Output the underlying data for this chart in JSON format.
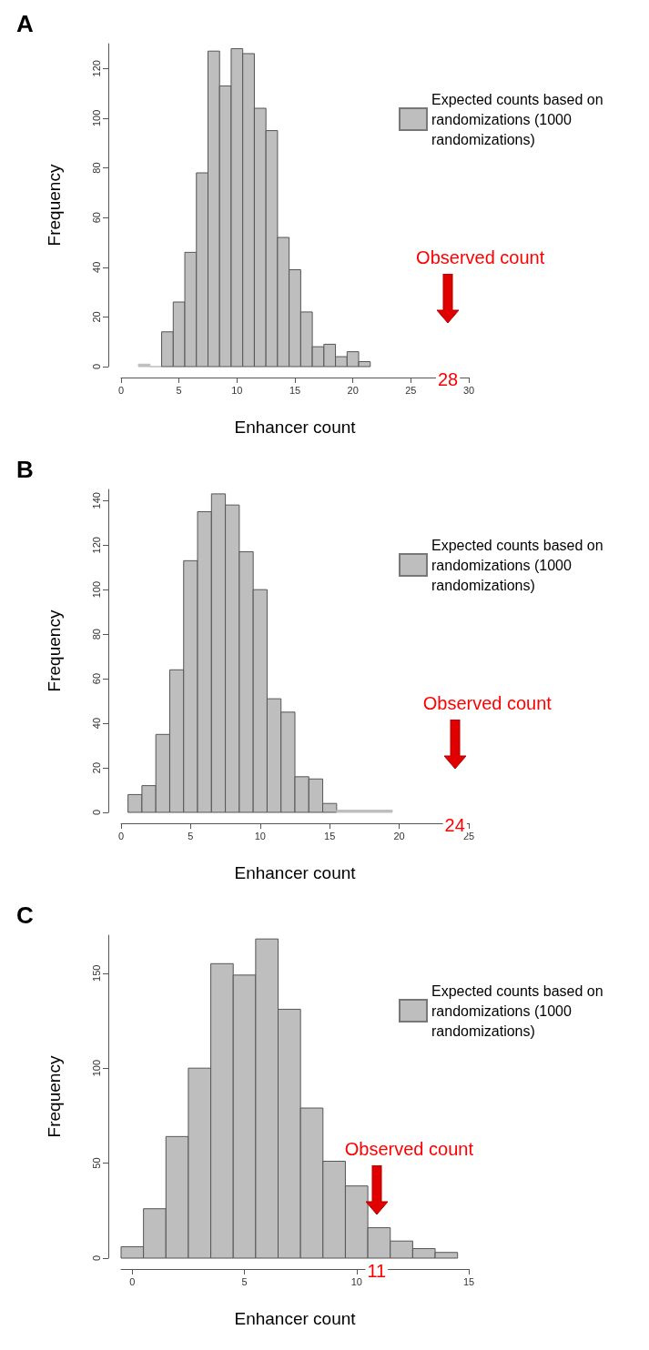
{
  "chart_data": [
    {
      "type": "histogram",
      "title": "A",
      "xlabel": "Enhancer count",
      "ylabel": "Frequency",
      "bins": [
        1.5,
        2.5,
        3.5,
        4.5,
        5.5,
        6.5,
        7.5,
        8.5,
        9.5,
        10.5,
        11.5,
        12.5,
        13.5,
        14.5,
        15.5,
        16.5,
        17.5,
        18.5,
        19.5,
        20.5,
        21.5
      ],
      "series": [
        {
          "name": "Expected counts based on randomizations (1000 randomizations)",
          "color": "#bebebe",
          "values": [
            1,
            0,
            14,
            26,
            46,
            78,
            127,
            113,
            128,
            126,
            104,
            95,
            52,
            39,
            22,
            8,
            9,
            4,
            6,
            2
          ]
        }
      ],
      "xlim": [
        0,
        30
      ],
      "xticks": [
        0,
        5,
        10,
        15,
        20,
        25,
        30
      ],
      "ylim": [
        0,
        130
      ],
      "yticks": [
        0,
        20,
        40,
        60,
        80,
        100,
        120
      ],
      "legend": "right",
      "grid": false,
      "annotations": [
        "Observed count",
        "28"
      ]
    },
    {
      "type": "histogram",
      "title": "B",
      "xlabel": "Enhancer count",
      "ylabel": "Frequency",
      "bins": [
        0.5,
        1.5,
        2.5,
        3.5,
        4.5,
        5.5,
        6.5,
        7.5,
        8.5,
        9.5,
        10.5,
        11.5,
        12.5,
        13.5,
        14.5,
        15.5,
        16.5,
        17.5,
        18.5,
        19.5
      ],
      "series": [
        {
          "name": "Expected counts based on randomizations (1000 randomizations)",
          "color": "#bebebe",
          "values": [
            8,
            12,
            35,
            64,
            113,
            135,
            143,
            138,
            117,
            100,
            51,
            45,
            16,
            15,
            4,
            1,
            1,
            1,
            1
          ]
        }
      ],
      "xlim": [
        0,
        25
      ],
      "xticks": [
        0,
        5,
        10,
        15,
        20,
        25
      ],
      "ylim": [
        0,
        145
      ],
      "yticks": [
        0,
        20,
        40,
        60,
        80,
        100,
        120,
        140
      ],
      "legend": "right",
      "grid": false,
      "annotations": [
        "Observed count",
        "24"
      ]
    },
    {
      "type": "histogram",
      "title": "C",
      "xlabel": "Enhancer count",
      "ylabel": "Frequency",
      "bins": [
        -0.5,
        0.5,
        1.5,
        2.5,
        3.5,
        4.5,
        5.5,
        6.5,
        7.5,
        8.5,
        9.5,
        10.5,
        11.5,
        12.5,
        13.5,
        14.5
      ],
      "series": [
        {
          "name": "Expected counts based on randomizations (1000 randomizations)",
          "color": "#bebebe",
          "values": [
            6,
            26,
            64,
            100,
            155,
            149,
            168,
            131,
            79,
            51,
            38,
            16,
            9,
            5,
            3
          ]
        }
      ],
      "xlim": [
        -0.5,
        15
      ],
      "xticks": [
        0,
        5,
        10,
        15
      ],
      "ylim": [
        0,
        170
      ],
      "yticks": [
        0,
        50,
        100,
        150
      ],
      "legend": "right",
      "grid": false,
      "annotations": [
        "Observed count",
        "11"
      ]
    }
  ]
}
